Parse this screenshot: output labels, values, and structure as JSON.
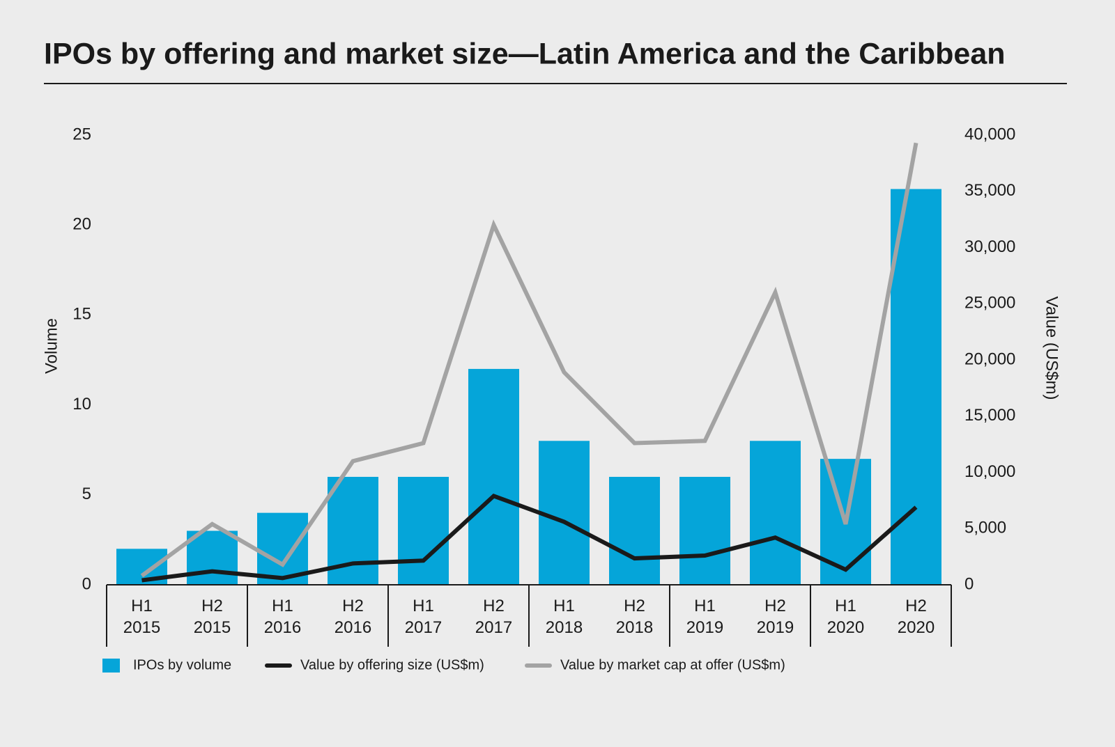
{
  "chart_data": {
    "type": "bar-line",
    "title": "IPOs by offering and market size—Latin America and the Caribbean",
    "categories": [
      "H1 2015",
      "H2 2015",
      "H1 2016",
      "H2 2016",
      "H1 2017",
      "H2 2017",
      "H1 2018",
      "H2 2018",
      "H1 2019",
      "H2 2019",
      "H1 2020",
      "H2 2020"
    ],
    "y_label": "Volume",
    "y2_label": "Value (US$m)",
    "ylim": [
      0,
      25
    ],
    "yticks": [
      0,
      5,
      10,
      15,
      20,
      25
    ],
    "y2lim": [
      0,
      40000
    ],
    "y2ticks": [
      0,
      {
        "value": 5000,
        "label": "5,000"
      },
      {
        "value": 10000,
        "label": "10,000"
      },
      {
        "value": 15000,
        "label": "15,000"
      },
      {
        "value": 20000,
        "label": "20,000"
      },
      {
        "value": 25000,
        "label": "25,000"
      },
      {
        "value": 30000,
        "label": "30,000"
      },
      {
        "value": 35000,
        "label": "35,000"
      },
      {
        "value": 40000,
        "label": "40,000"
      }
    ],
    "series": [
      {
        "name": "IPOs by volume",
        "type": "bar",
        "color": "#05a5d9",
        "values": [
          2,
          3,
          4,
          6,
          6,
          12,
          8,
          6,
          6,
          8,
          7,
          22
        ]
      },
      {
        "name": "Value by offering size (US$m)",
        "type": "line",
        "axis": "y2",
        "color": "#1a1a1a",
        "values": [
          400,
          1200,
          600,
          1900,
          2150,
          7900,
          5600,
          2350,
          2600,
          4200,
          1350,
          6900
        ]
      },
      {
        "name": "Value by market cap at offer (US$m)",
        "type": "line",
        "axis": "y2",
        "color": "#a3a3a3",
        "values": [
          800,
          5400,
          1800,
          11000,
          12600,
          32000,
          18900,
          12600,
          12800,
          26000,
          5400,
          39300
        ]
      }
    ]
  }
}
